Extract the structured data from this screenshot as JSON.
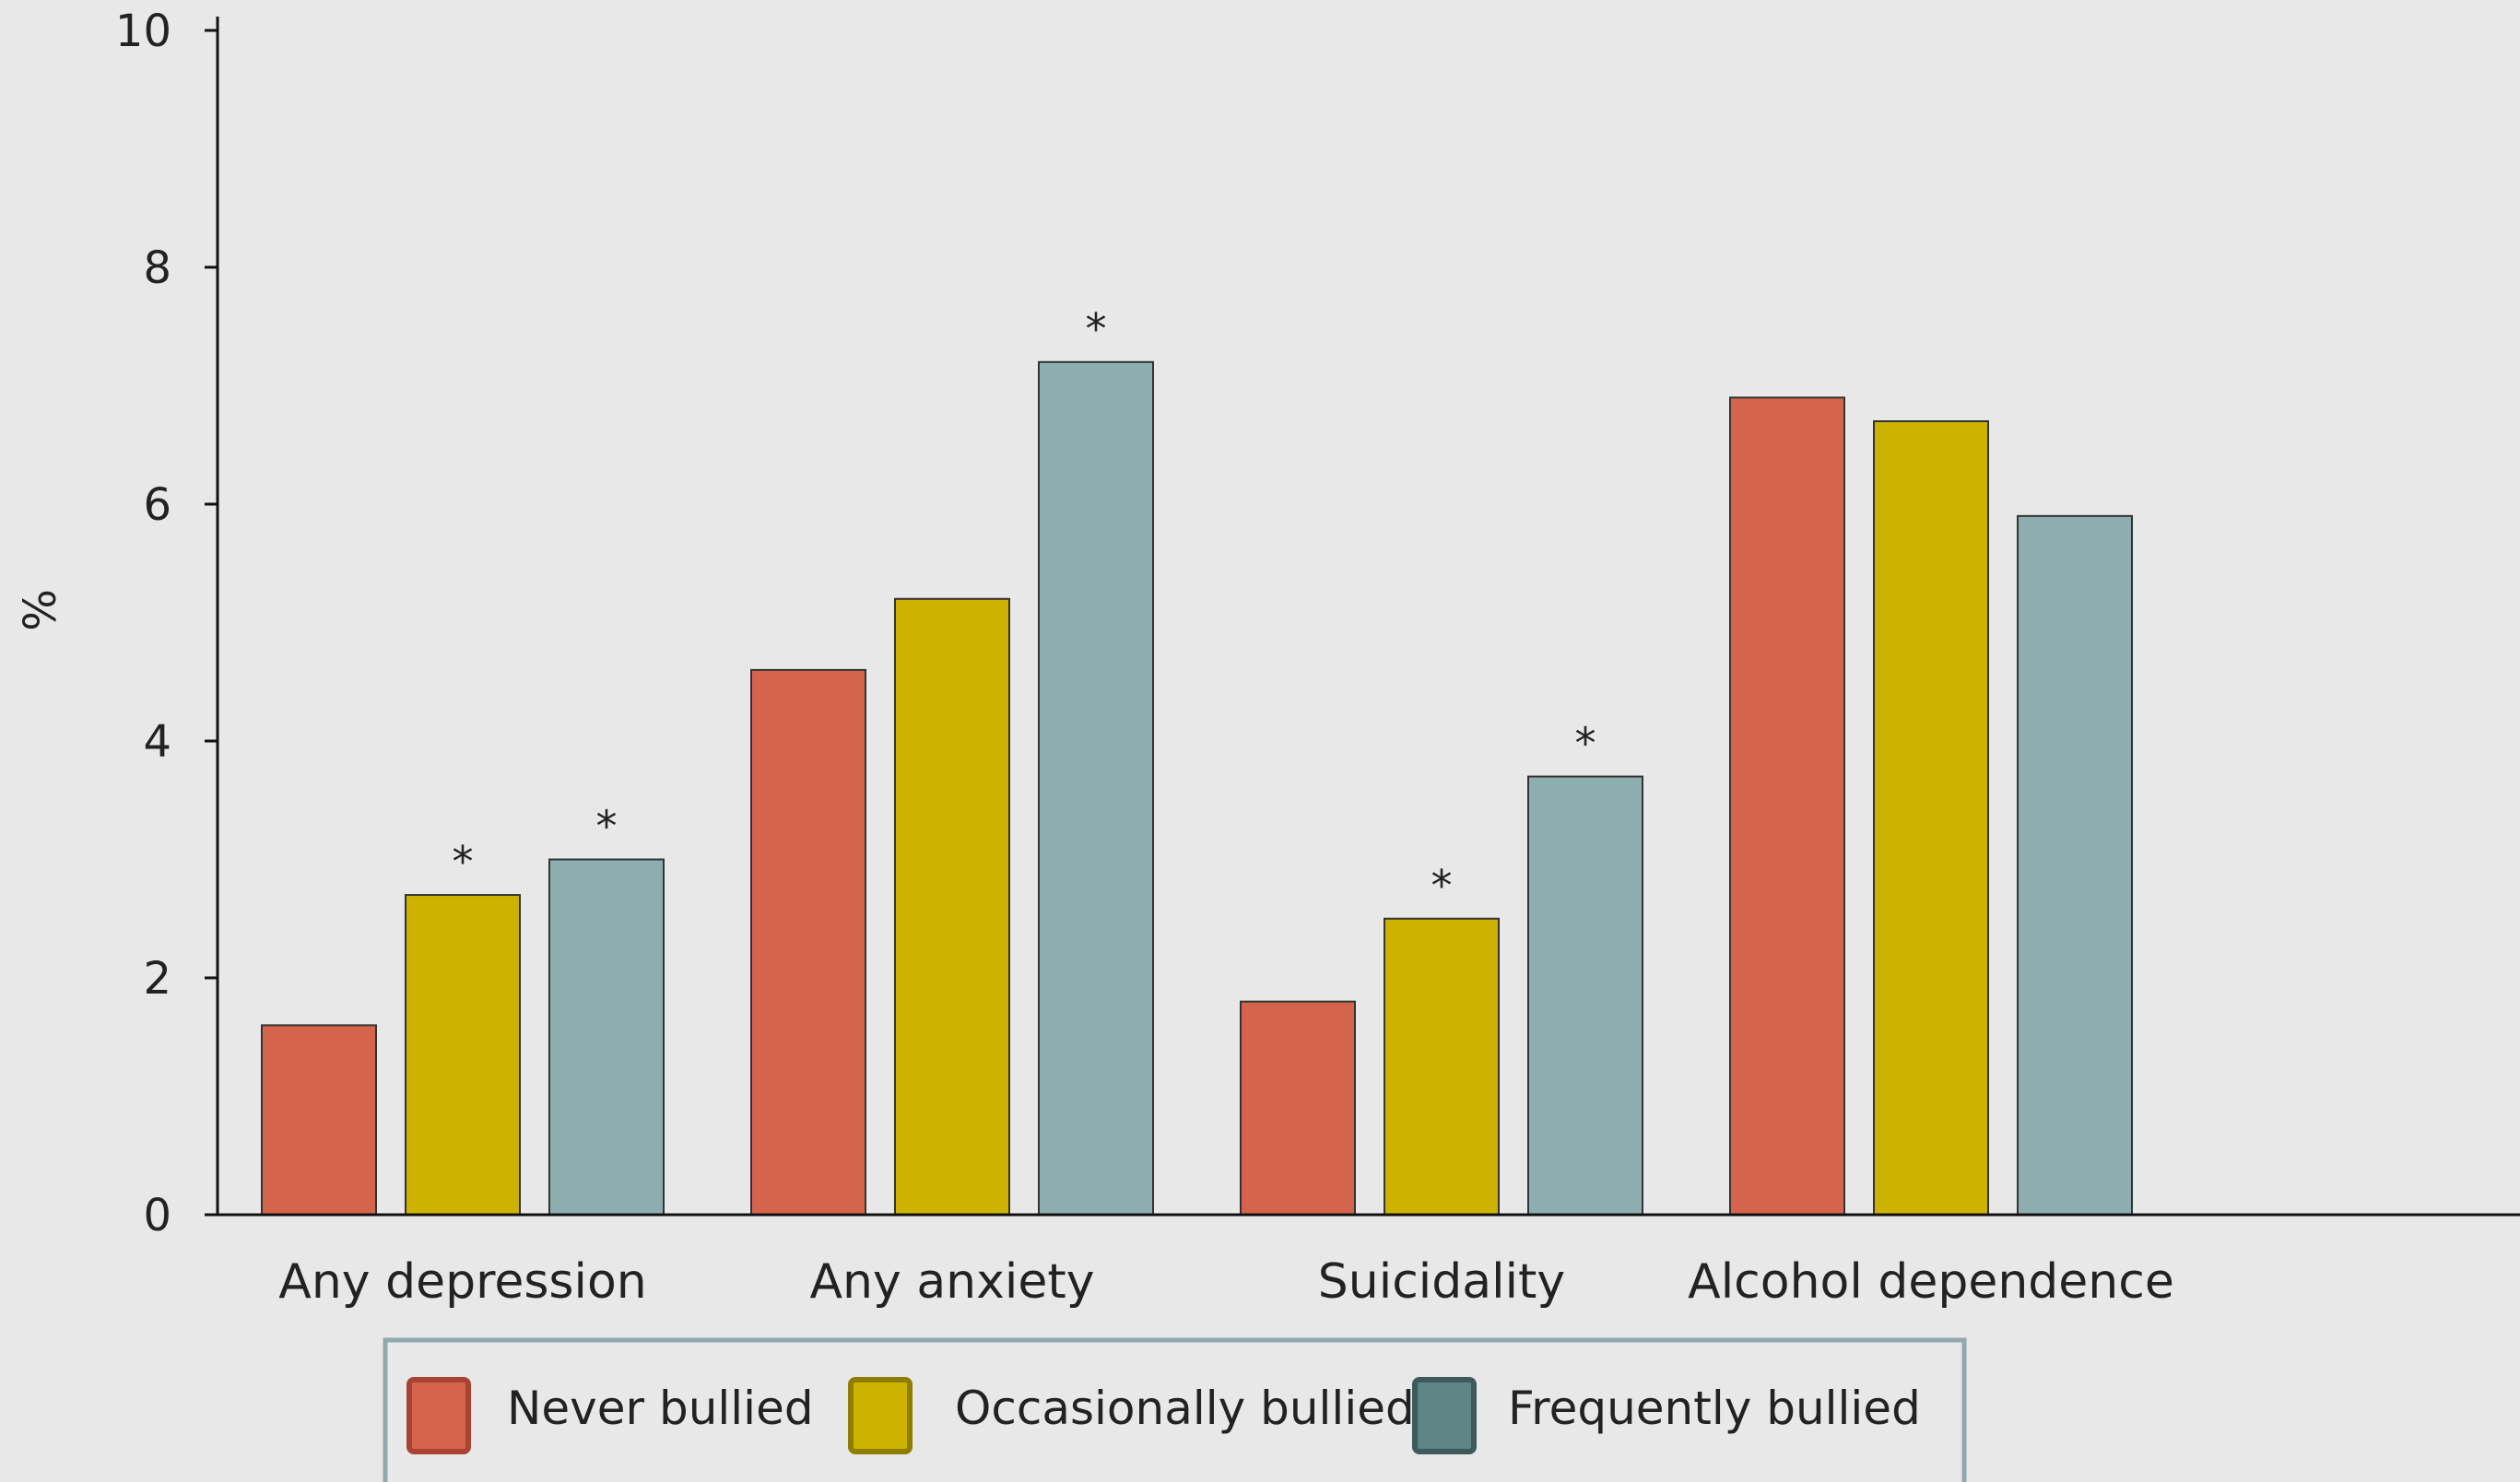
{
  "chart_data": {
    "type": "bar",
    "title": "",
    "xlabel": "",
    "ylabel": "%",
    "ylim": [
      0,
      10
    ],
    "yticks": [
      0,
      2,
      4,
      6,
      8,
      10
    ],
    "grid": false,
    "legend_position": "bottom",
    "categories": [
      "Any depression",
      "Any anxiety",
      "Suicidality",
      "Alcohol dependence"
    ],
    "series": [
      {
        "name": "Never bullied",
        "values": [
          1.6,
          4.6,
          1.8,
          6.9
        ],
        "significant": [
          false,
          false,
          false,
          false
        ]
      },
      {
        "name": "Occasionally bullied",
        "values": [
          2.7,
          5.2,
          2.5,
          6.7
        ],
        "significant": [
          true,
          false,
          true,
          false
        ]
      },
      {
        "name": "Frequently bullied",
        "values": [
          3.0,
          7.2,
          3.7,
          5.9
        ],
        "significant": [
          true,
          true,
          true,
          false
        ]
      }
    ],
    "significance_marker": "*"
  },
  "colors": {
    "background": "#e8e8e8",
    "series_fill": [
      "#d4654c",
      "#cdb300",
      "#8daeae"
    ],
    "legend_swatch_fill": [
      "#d4654c",
      "#cdb300",
      "#5f8585"
    ],
    "legend_swatch_border": [
      "#a94333",
      "#8f7d00",
      "#3e5a5a"
    ],
    "legend_border": "#90a8b0",
    "axis": "#111111"
  }
}
